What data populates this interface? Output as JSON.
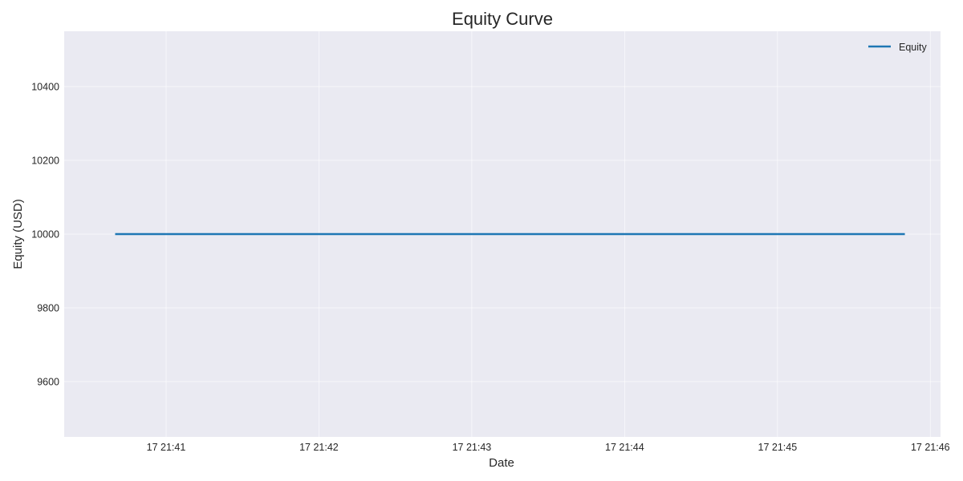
{
  "chart_data": {
    "type": "line",
    "title": "Equity Curve",
    "xlabel": "Date",
    "ylabel": "Equity (USD)",
    "x_ticks": [
      "17 21:41",
      "17 21:42",
      "17 21:43",
      "17 21:44",
      "17 21:45",
      "17 21:46"
    ],
    "y_ticks": [
      9600,
      9800,
      10000,
      10200,
      10400
    ],
    "ylim": [
      9450,
      10550
    ],
    "xlim": [
      "21:40:20",
      "21:46:04"
    ],
    "x_tick_times": [
      "21:41:00",
      "21:42:00",
      "21:43:00",
      "21:44:00",
      "21:45:00",
      "21:46:00"
    ],
    "grid": true,
    "legend_placement": "top-right",
    "series": [
      {
        "name": "Equity",
        "color": "#1f77b4",
        "x": [
          "21:40:40",
          "21:45:50"
        ],
        "values": [
          10000,
          10000
        ]
      }
    ],
    "colors": {
      "plot_background": "#eaeaf2",
      "grid": "#ffffff"
    }
  }
}
